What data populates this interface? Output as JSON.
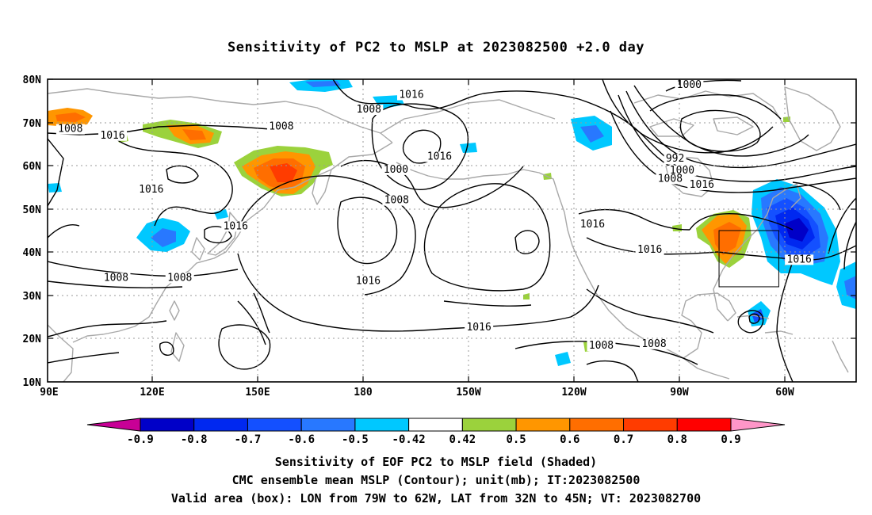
{
  "title": "Sensitivity of PC2 to MSLP at 2023082500 +2.0 day",
  "map": {
    "lat_ticks": [
      "80N",
      "70N",
      "60N",
      "50N",
      "40N",
      "30N",
      "20N",
      "10N"
    ],
    "lon_ticks": [
      "90E",
      "120E",
      "150E",
      "180",
      "150W",
      "120W",
      "90W",
      "60W"
    ],
    "contour_labels": [
      {
        "text": "1016",
        "lon": -166.5,
        "lat": 75.7
      },
      {
        "text": "1008",
        "lon": -178.6,
        "lat": 72.3
      },
      {
        "text": "1008",
        "lon": 96.5,
        "lat": 67.8
      },
      {
        "text": "1016",
        "lon": 108.5,
        "lat": 66.3
      },
      {
        "text": "1008",
        "lon": 156.5,
        "lat": 68.4
      },
      {
        "text": "1000",
        "lon": -87.5,
        "lat": 78.0
      },
      {
        "text": "992",
        "lon": -91.5,
        "lat": 60.9
      },
      {
        "text": "1000",
        "lon": -89.5,
        "lat": 58.2
      },
      {
        "text": "1008",
        "lon": -92.9,
        "lat": 56.3
      },
      {
        "text": "1016",
        "lon": -83.9,
        "lat": 54.9
      },
      {
        "text": "1000",
        "lon": -170.9,
        "lat": 58.4
      },
      {
        "text": "1016",
        "lon": -158.5,
        "lat": 61.4
      },
      {
        "text": "1008",
        "lon": -170.7,
        "lat": 51.3
      },
      {
        "text": "1016",
        "lon": 119.5,
        "lat": 53.8
      },
      {
        "text": "1016",
        "lon": 143.5,
        "lat": 45.3
      },
      {
        "text": "1016",
        "lon": -115.0,
        "lat": 45.7
      },
      {
        "text": "1016",
        "lon": -98.7,
        "lat": 39.9
      },
      {
        "text": "1016",
        "lon": -56.2,
        "lat": 37.6
      },
      {
        "text": "1008",
        "lon": 109.5,
        "lat": 33.4
      },
      {
        "text": "1008",
        "lon": 127.6,
        "lat": 33.4
      },
      {
        "text": "1016",
        "lon": -178.8,
        "lat": 32.6
      },
      {
        "text": "1016",
        "lon": -147.3,
        "lat": 21.9
      },
      {
        "text": "1008",
        "lon": -112.5,
        "lat": 17.7
      },
      {
        "text": "1008",
        "lon": -97.5,
        "lat": 18.1
      }
    ],
    "valid_box": {
      "lon_west": -79,
      "lon_east": -62,
      "lat_south": 32,
      "lat_north": 45
    }
  },
  "colorbar": {
    "labels": [
      "-0.9",
      "-0.8",
      "-0.7",
      "-0.6",
      "-0.5",
      "-0.42",
      "0.42",
      "0.5",
      "0.6",
      "0.7",
      "0.8",
      "0.9"
    ],
    "colors": [
      "#0000c8",
      "#0028f0",
      "#1450ff",
      "#2878ff",
      "#00c8ff",
      "#ffffff",
      "#9bd23c",
      "#ff9600",
      "#ff6e00",
      "#ff3c00",
      "#ff0000"
    ],
    "under_color": "#c80096",
    "over_color": "#ff96c8"
  },
  "captions": {
    "line1": "Sensitivity of EOF PC2 to MSLP field (Shaded)",
    "line2": "CMC ensemble mean MSLP (Contour); unit(mb); IT:2023082500",
    "line3": "Valid area (box): LON from 79W to 62W, LAT from 32N to 45N; VT: 2023082700"
  }
}
